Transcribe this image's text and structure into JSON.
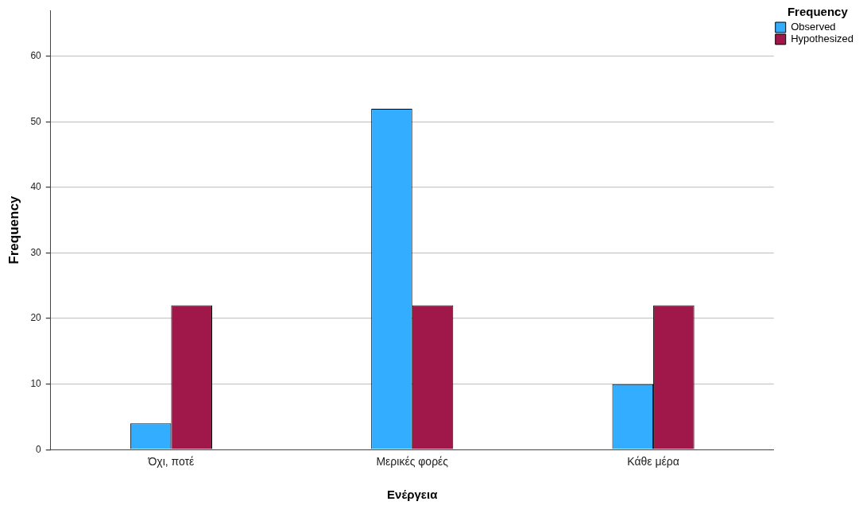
{
  "chart_data": {
    "type": "bar",
    "xlabel": "Ενέργεια",
    "ylabel": "Frequency",
    "legend_title": "Frequency",
    "categories": [
      "Όχι, ποτέ",
      "Μερικές φορές",
      "Κάθε μέρα"
    ],
    "series": [
      {
        "name": "Observed",
        "color": "#33adff",
        "values": [
          4,
          52,
          10
        ]
      },
      {
        "name": "Hypothesized",
        "color": "#a0184a",
        "values": [
          22,
          22,
          22
        ]
      }
    ],
    "ylim": [
      0,
      67
    ],
    "yticks": [
      0,
      10,
      20,
      30,
      40,
      50,
      60
    ],
    "grid": "y",
    "legend": "top right"
  }
}
